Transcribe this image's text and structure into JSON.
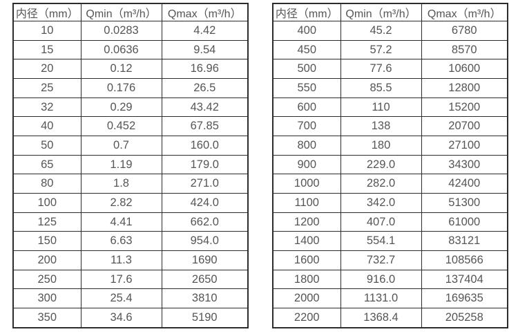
{
  "colors": {
    "background": "#ffffff",
    "text": "#555555",
    "border": "#2b2b2b"
  },
  "tables": [
    {
      "name": "flow-spec-small-diameters",
      "headers": [
        "内径（mm）",
        "Qmin（m³/h）",
        "Qmax（m³/h）"
      ],
      "rows": [
        [
          "10",
          "0.0283",
          "4.42"
        ],
        [
          "15",
          "0.0636",
          "9.54"
        ],
        [
          "20",
          "0.12",
          "16.96"
        ],
        [
          "25",
          "0.176",
          "26.5"
        ],
        [
          "32",
          "0.29",
          "43.42"
        ],
        [
          "40",
          "0.452",
          "67.85"
        ],
        [
          "50",
          "0.7",
          "160.0"
        ],
        [
          "65",
          "1.19",
          "179.0"
        ],
        [
          "80",
          "1.8",
          "271.0"
        ],
        [
          "100",
          "2.82",
          "424.0"
        ],
        [
          "125",
          "4.41",
          "662.0"
        ],
        [
          "150",
          "6.63",
          "954.0"
        ],
        [
          "200",
          "11.3",
          "1690"
        ],
        [
          "250",
          "17.6",
          "2650"
        ],
        [
          "300",
          "25.4",
          "3810"
        ],
        [
          "350",
          "34.6",
          "5190"
        ]
      ]
    },
    {
      "name": "flow-spec-large-diameters",
      "headers": [
        "内径（mm）",
        "Qmin（m³/h）",
        "Qmax（m³/h）"
      ],
      "rows": [
        [
          "400",
          "45.2",
          "6780"
        ],
        [
          "450",
          "57.2",
          "8570"
        ],
        [
          "500",
          "77.6",
          "10600"
        ],
        [
          "550",
          "85.5",
          "12800"
        ],
        [
          "600",
          "110",
          "15200"
        ],
        [
          "700",
          "138",
          "20700"
        ],
        [
          "800",
          "180",
          "27100"
        ],
        [
          "900",
          "229.0",
          "34300"
        ],
        [
          "1000",
          "282.0",
          "42400"
        ],
        [
          "1100",
          "342.0",
          "51300"
        ],
        [
          "1200",
          "407.0",
          "61000"
        ],
        [
          "1400",
          "554.1",
          "83121"
        ],
        [
          "1600",
          "732.7",
          "108566"
        ],
        [
          "1800",
          "916.0",
          "137404"
        ],
        [
          "2000",
          "1131.0",
          "169635"
        ],
        [
          "2200",
          "1368.4",
          "205258"
        ]
      ]
    }
  ]
}
